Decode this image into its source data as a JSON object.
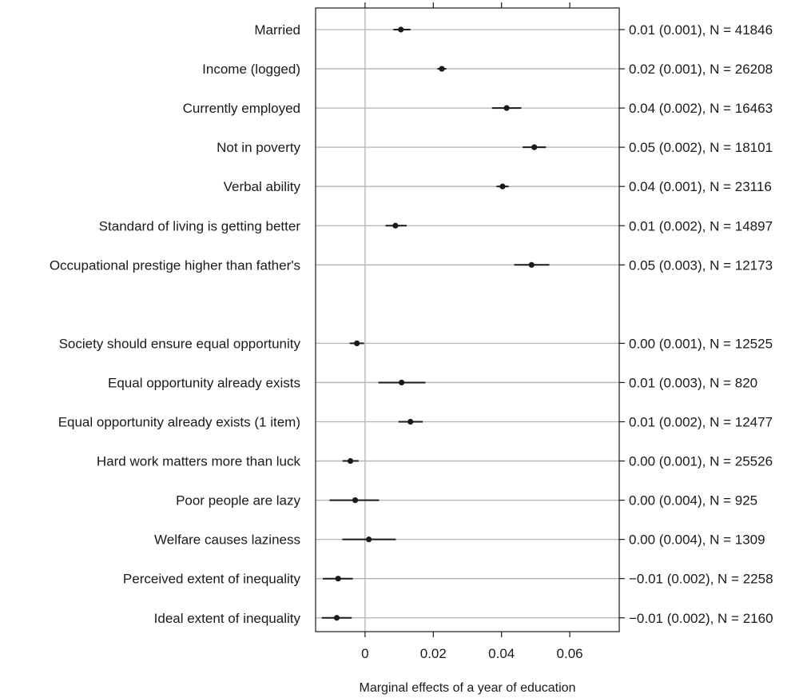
{
  "chart_data": {
    "type": "scatter",
    "subtype": "coefficient-plot",
    "title": "",
    "xlabel": "Marginal effects of a year of education",
    "ylabel": "",
    "xlim": [
      -0.0145,
      0.0745
    ],
    "xticks": [
      0,
      0.02,
      0.04,
      0.06
    ],
    "xtick_labels": [
      "0",
      "0.02",
      "0.04",
      "0.06"
    ],
    "reference_line_x": 0,
    "grid": "horizontal row lines at each item",
    "groups": [
      {
        "items": [
          {
            "label": "Married",
            "estimate": 0.0105,
            "ci": [
              0.0083,
              0.0133
            ],
            "annotation": "0.01 (0.001), N = 41846"
          },
          {
            "label": "Income (logged)",
            "estimate": 0.0225,
            "ci": [
              0.0212,
              0.0238
            ],
            "annotation": "0.02 (0.001), N = 26208"
          },
          {
            "label": "Currently employed",
            "estimate": 0.0415,
            "ci": [
              0.0372,
              0.0458
            ],
            "annotation": "0.04 (0.002), N = 16463"
          },
          {
            "label": "Not in poverty",
            "estimate": 0.0496,
            "ci": [
              0.0462,
              0.053
            ],
            "annotation": "0.05 (0.002), N = 18101"
          },
          {
            "label": "Verbal ability",
            "estimate": 0.0403,
            "ci": [
              0.0385,
              0.0421
            ],
            "annotation": "0.04 (0.001), N = 23116"
          },
          {
            "label": "Standard of living is getting better",
            "estimate": 0.0089,
            "ci": [
              0.006,
              0.0122
            ],
            "annotation": "0.01 (0.002), N = 14897"
          },
          {
            "label": "Occupational prestige higher than father's",
            "estimate": 0.0488,
            "ci": [
              0.0437,
              0.054
            ],
            "annotation": "0.05 (0.003), N = 12173"
          }
        ]
      },
      {
        "items": [
          {
            "label": "Society should ensure equal opportunity",
            "estimate": -0.0024,
            "ci": [
              -0.0045,
              -0.0003
            ],
            "annotation": "0.00 (0.001), N = 12525"
          },
          {
            "label": "Equal opportunity already exists",
            "estimate": 0.0107,
            "ci": [
              0.0039,
              0.0177
            ],
            "annotation": "0.01 (0.003), N = 820"
          },
          {
            "label": "Equal opportunity already exists (1 item)",
            "estimate": 0.0133,
            "ci": [
              0.0098,
              0.0169
            ],
            "annotation": "0.01 (0.002), N = 12477"
          },
          {
            "label": "Hard work matters more than luck",
            "estimate": -0.0043,
            "ci": [
              -0.0066,
              -0.0019
            ],
            "annotation": "0.00 (0.001), N = 25526"
          },
          {
            "label": "Poor people are lazy",
            "estimate": -0.0029,
            "ci": [
              -0.0104,
              0.0041
            ],
            "annotation": "0.00 (0.004), N = 925"
          },
          {
            "label": "Welfare causes laziness",
            "estimate": 0.0011,
            "ci": [
              -0.0067,
              0.009
            ],
            "annotation": "0.00 (0.004), N = 1309"
          },
          {
            "label": "Perceived extent of inequality",
            "estimate": -0.0079,
            "ci": [
              -0.0124,
              -0.0036
            ],
            "annotation": "−0.01 (0.002), N = 2258"
          },
          {
            "label": "Ideal extent of inequality",
            "estimate": -0.0083,
            "ci": [
              -0.0127,
              -0.0039
            ],
            "annotation": "−0.01 (0.002), N = 2160"
          }
        ]
      }
    ],
    "colors": {
      "point": "#1a1a1a",
      "ci": "#1a1a1a",
      "row_line": "#b3b3b3",
      "zero_line": "#b3b3b3",
      "frame": "#1a1a1a"
    }
  }
}
